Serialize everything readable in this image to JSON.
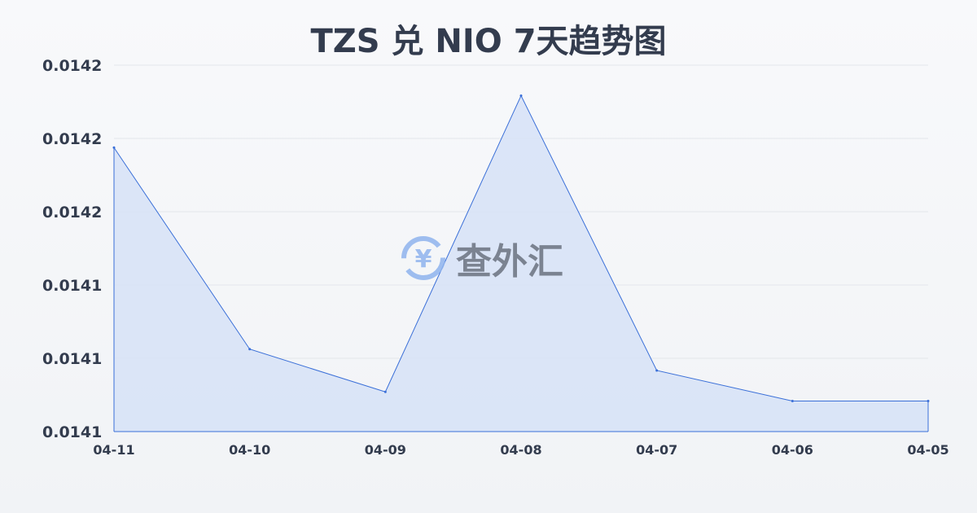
{
  "chart_data": {
    "type": "area",
    "title": "TZS 兑 NIO 7天趋势图",
    "categories": [
      "04-11",
      "04-10",
      "04-09",
      "04-08",
      "04-07",
      "04-06",
      "04-05"
    ],
    "values": [
      0.014193,
      0.014127,
      0.014113,
      0.01421,
      0.01412,
      0.01411,
      0.01411
    ],
    "ylim": [
      0.0141,
      0.01422
    ],
    "yticks": [
      0.0141,
      0.014124,
      0.014148,
      0.014172,
      0.014196,
      0.01422
    ],
    "ytick_labels": [
      "0.0141",
      "0.0141",
      "0.0141",
      "0.0142",
      "0.0142",
      "0.0142"
    ],
    "grid": true,
    "colors": {
      "line": "#3a6fd8",
      "fill": "#d6e2f7",
      "grid": "#e3e6eb"
    }
  },
  "watermark": {
    "text": "查外汇",
    "icon": "yen-exchange-icon"
  }
}
